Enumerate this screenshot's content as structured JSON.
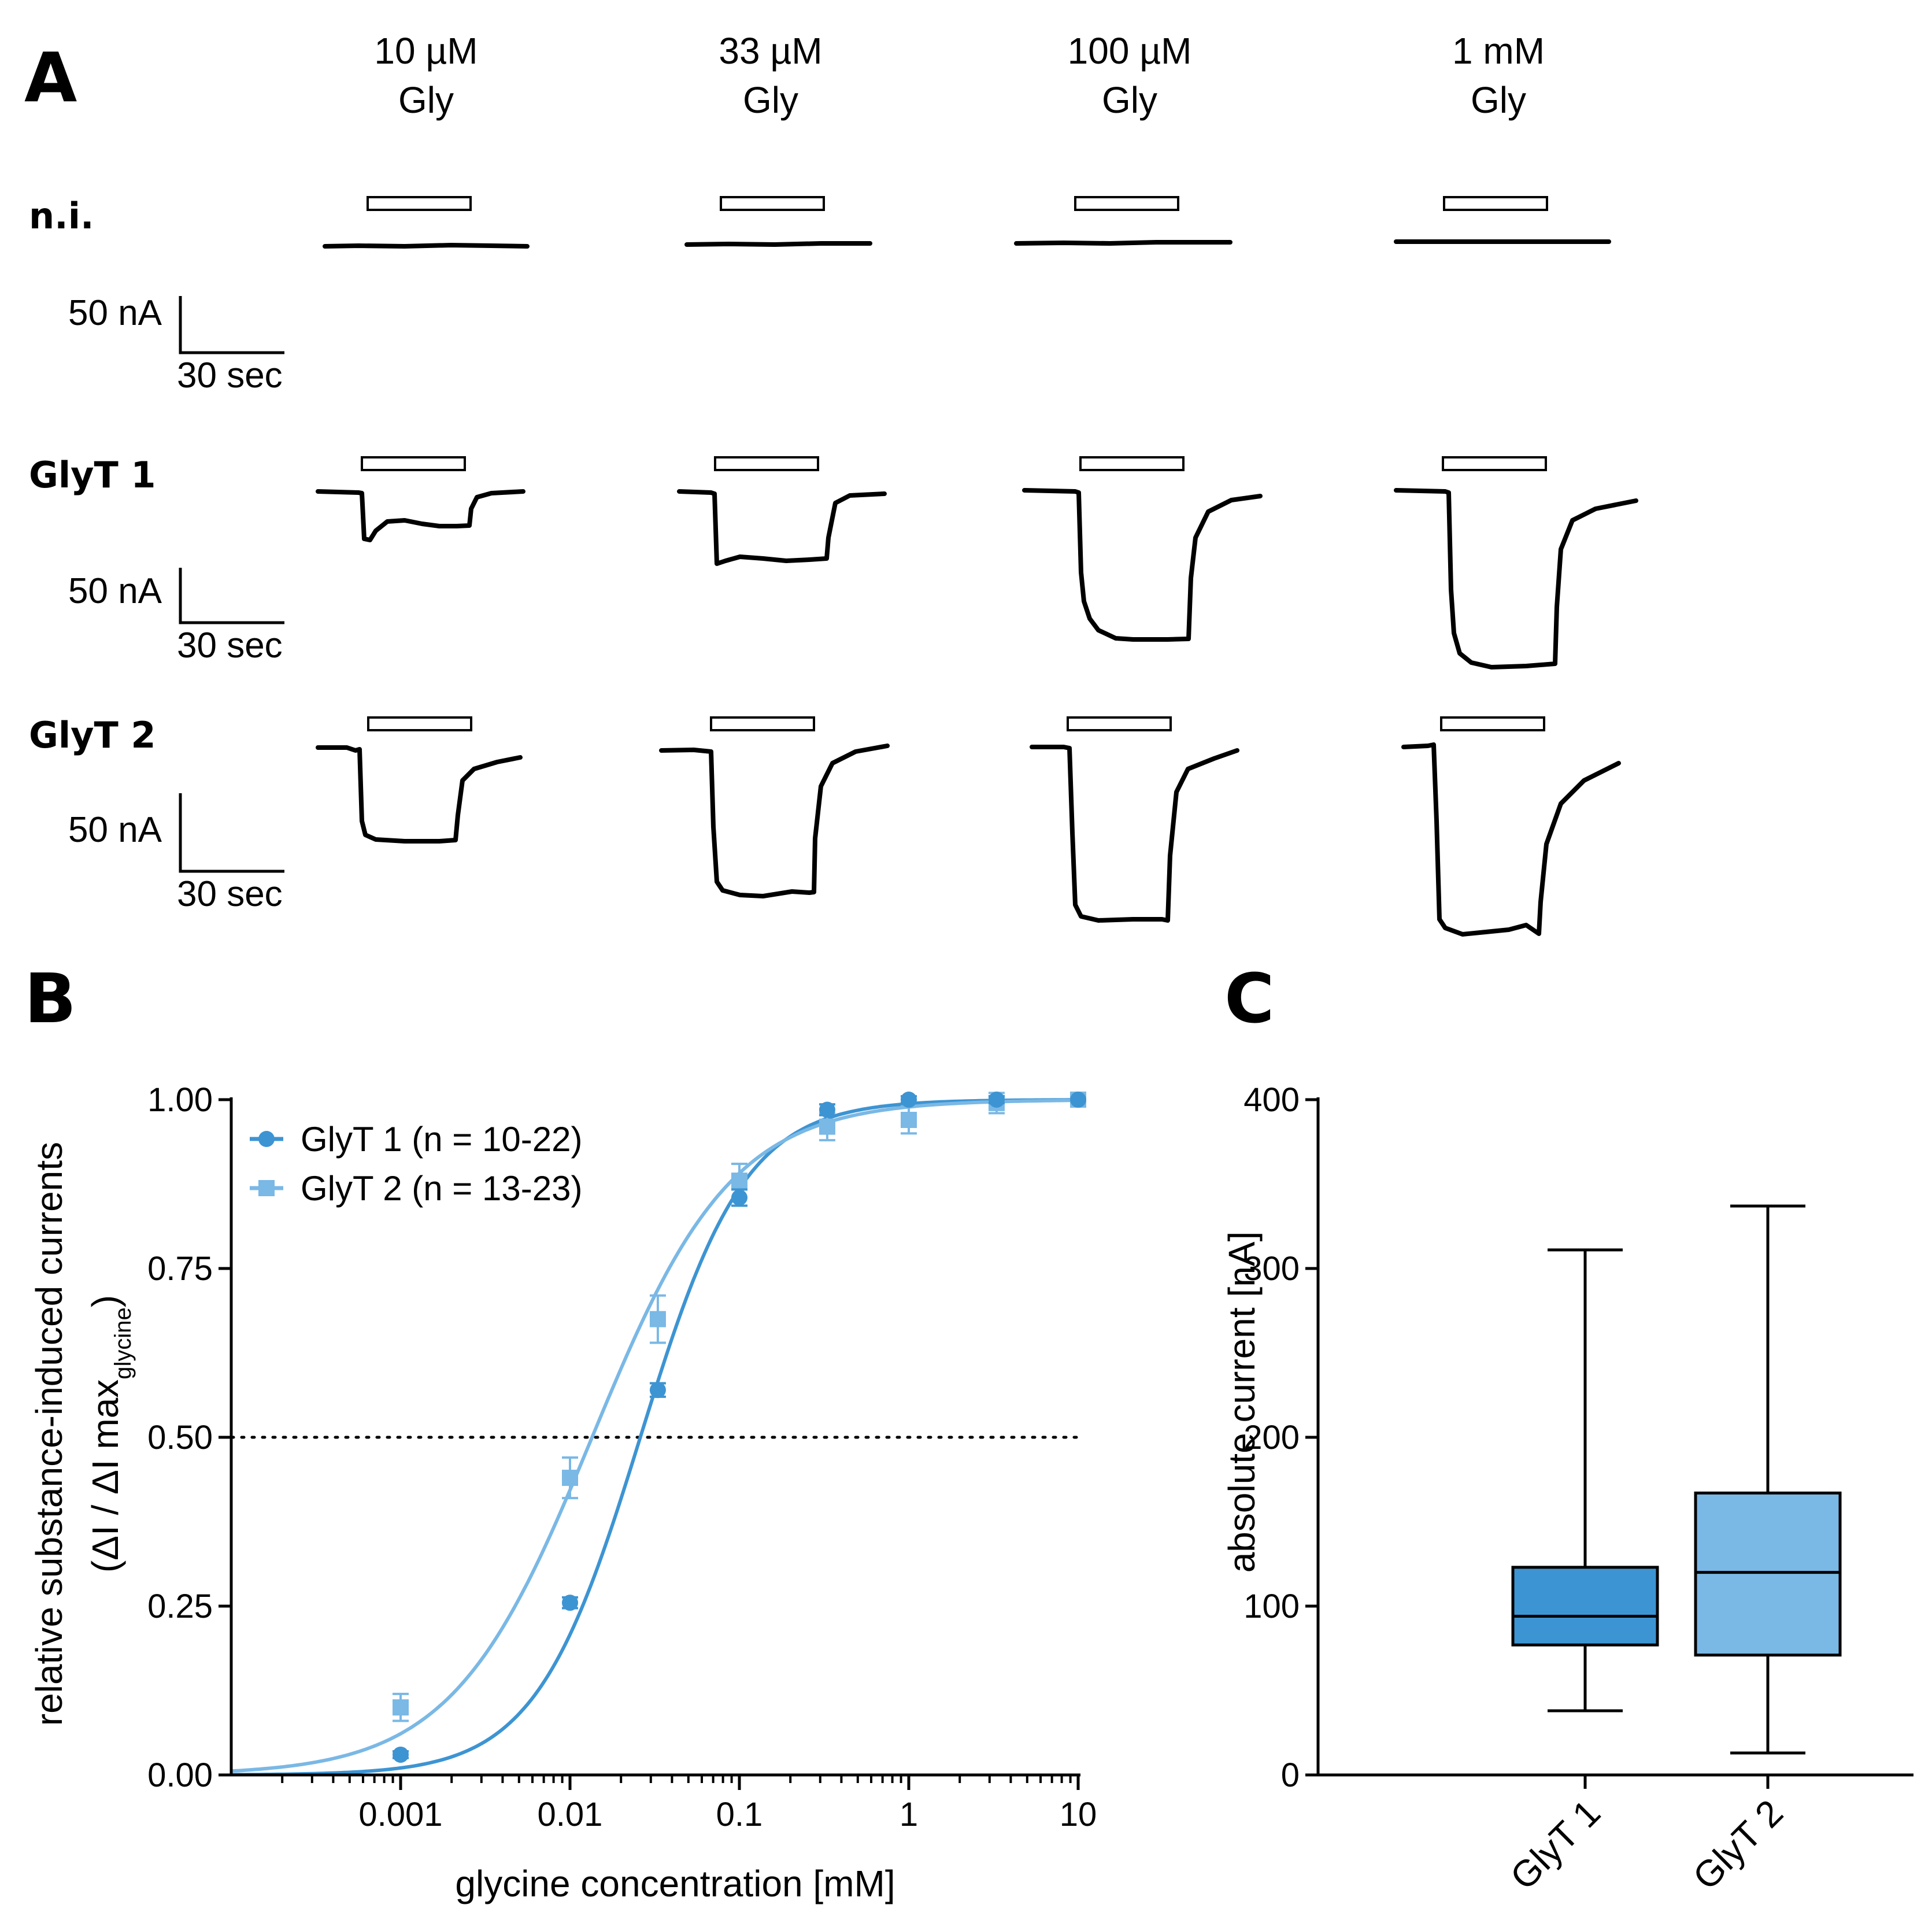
{
  "panel_a": {
    "label": "A",
    "concentrations": [
      {
        "line1": "10 µM",
        "line2": "Gly"
      },
      {
        "line1": "33 µM",
        "line2": "Gly"
      },
      {
        "line1": "100 µM",
        "line2": "Gly"
      },
      {
        "line1": "1 mM",
        "line2": "Gly"
      }
    ],
    "rows": [
      {
        "label": "n.i.",
        "scale_current": "50 nA",
        "scale_time": "30 sec",
        "peak_currents_nA": [
          0,
          0,
          0,
          0
        ]
      },
      {
        "label": "GlyT 1",
        "scale_current": "50 nA",
        "scale_time": "30 sec",
        "peak_currents_nA": [
          26,
          55,
          116,
          141
        ]
      },
      {
        "label": "GlyT 2",
        "scale_current": "50 nA",
        "scale_time": "30 sec",
        "peak_currents_nA": [
          72,
          115,
          135,
          140
        ]
      }
    ]
  },
  "panel_b": {
    "label": "B"
  },
  "panel_c": {
    "label": "C"
  },
  "chart_data": [
    {
      "type": "scatter",
      "title": "",
      "xlabel": "glycine concentration [mM]",
      "ylabel_line1": "relative substance-induced currents",
      "ylabel_line2_pre": "(ΔI / ΔI max",
      "ylabel_line2_sub": "glycine",
      "ylabel_line2_post": ")",
      "xscale": "log",
      "xlim": [
        0.0001,
        10
      ],
      "ylim": [
        0,
        1
      ],
      "xticks": [
        {
          "value": 0.001,
          "label": "0.001"
        },
        {
          "value": 0.01,
          "label": "0.01"
        },
        {
          "value": 0.1,
          "label": "0.1"
        },
        {
          "value": 1,
          "label": "1"
        },
        {
          "value": 10,
          "label": "10"
        }
      ],
      "yticks": [
        {
          "value": 0,
          "label": "0.00"
        },
        {
          "value": 0.25,
          "label": "0.25"
        },
        {
          "value": 0.5,
          "label": "0.50"
        },
        {
          "value": 0.75,
          "label": "0.75"
        },
        {
          "value": 1,
          "label": "1.00"
        }
      ],
      "reference_line": {
        "y": 0.5,
        "style": "dotted"
      },
      "legend_position": "top-left",
      "series": [
        {
          "name": "GlyT 1 (n = 10-22)",
          "marker": "circle",
          "color": "#3d94d2",
          "x": [
            0.001,
            0.01,
            0.033,
            0.1,
            0.33,
            1,
            3.3,
            10
          ],
          "y": [
            0.03,
            0.255,
            0.57,
            0.855,
            0.985,
            1.0,
            1.0,
            1.0
          ],
          "err": [
            0.005,
            0.008,
            0.01,
            0.012,
            0.008,
            0.005,
            0.005,
            0.0
          ],
          "fit": {
            "ec50_mM": 0.026,
            "hill": 1.4
          }
        },
        {
          "name": "GlyT 2 (n = 13-23)",
          "marker": "square",
          "color": "#7ab8e5",
          "x": [
            0.001,
            0.01,
            0.033,
            0.1,
            0.33,
            1,
            3.3,
            10
          ],
          "y": [
            0.1,
            0.44,
            0.675,
            0.88,
            0.96,
            0.97,
            0.995,
            1.0
          ],
          "err": [
            0.02,
            0.03,
            0.035,
            0.025,
            0.02,
            0.02,
            0.015,
            0.0
          ],
          "fit": {
            "ec50_mM": 0.0135,
            "hill": 1.05
          }
        }
      ]
    },
    {
      "type": "box",
      "title": "",
      "xlabel": "",
      "ylabel": "absolute current [nA]",
      "ylim": [
        0,
        400
      ],
      "yticks": [
        {
          "value": 0,
          "label": "0"
        },
        {
          "value": 100,
          "label": "100"
        },
        {
          "value": 200,
          "label": "200"
        },
        {
          "value": 300,
          "label": "300"
        },
        {
          "value": 400,
          "label": "400"
        }
      ],
      "categories": [
        "GlyT 1",
        "GlyT 2"
      ],
      "boxes": [
        {
          "name": "GlyT 1",
          "color": "#3d94d2",
          "min": 38,
          "q1": 77,
          "median": 94,
          "q3": 123,
          "max": 311
        },
        {
          "name": "GlyT 2",
          "color": "#7ab8e5",
          "min": 13,
          "q1": 71,
          "median": 120,
          "q3": 167,
          "max": 337
        }
      ]
    }
  ]
}
